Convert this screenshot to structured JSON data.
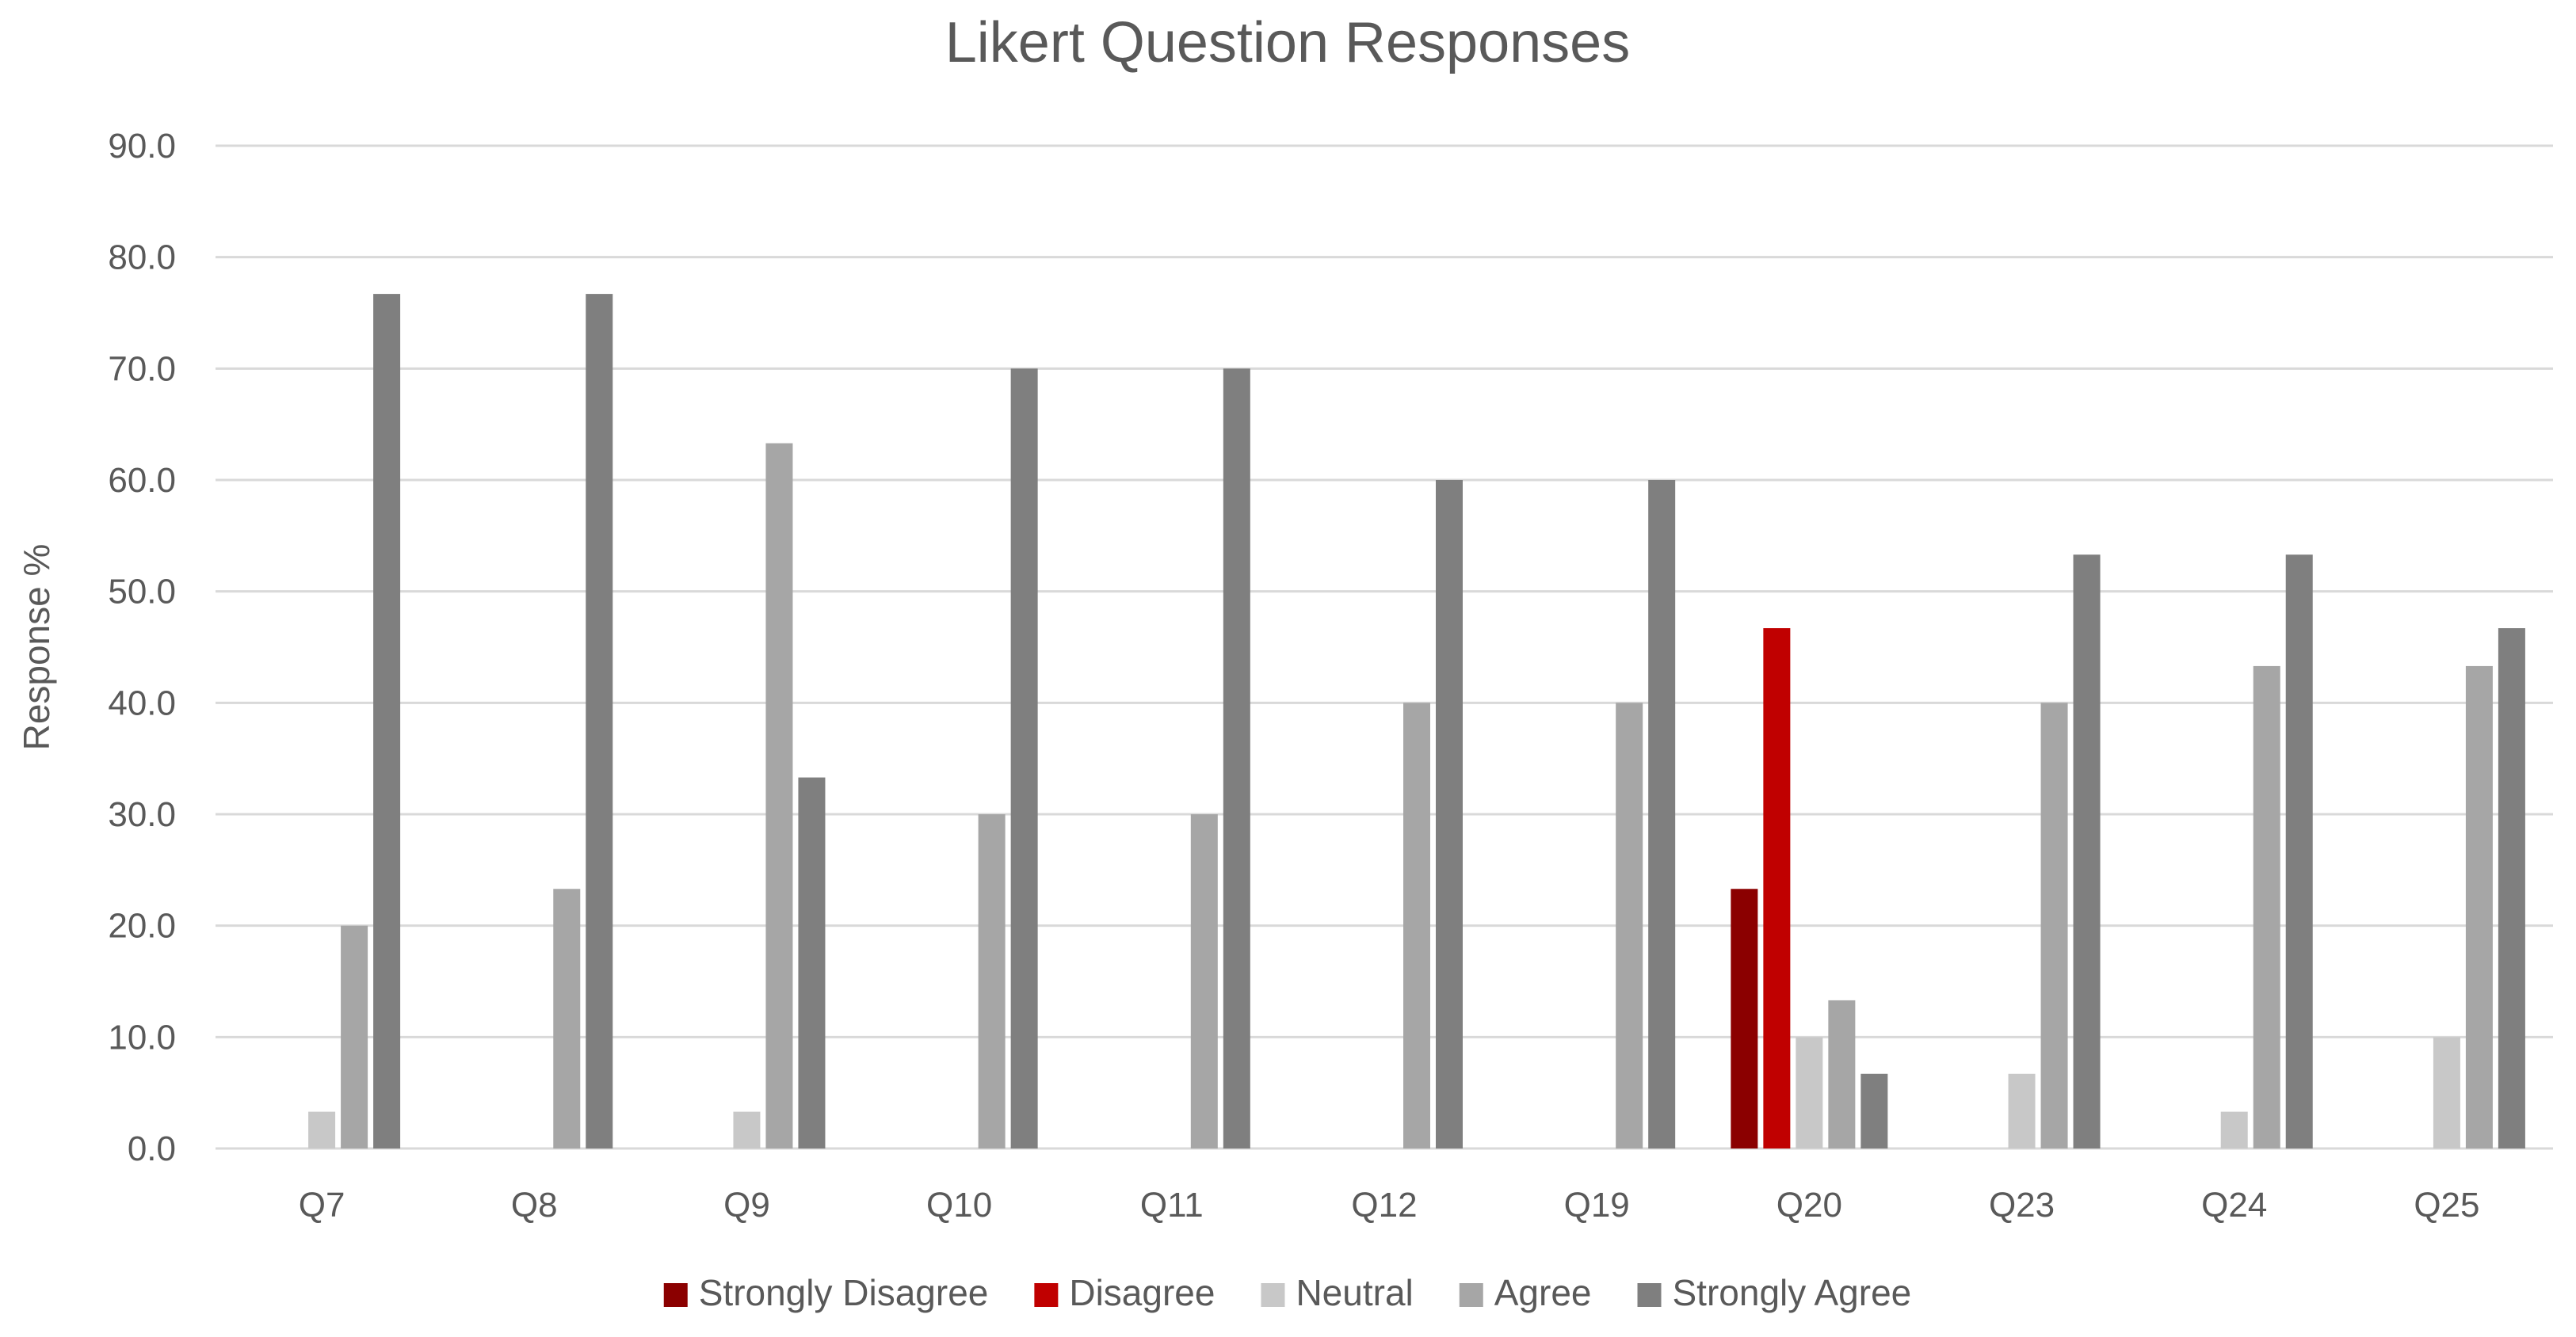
{
  "chart_data": {
    "type": "bar",
    "title": "Likert Question Responses",
    "xlabel": "",
    "ylabel": "Response %",
    "ylim": [
      0,
      90
    ],
    "ytick_step": 10,
    "ytick_labels": [
      "0.0",
      "10.0",
      "20.0",
      "30.0",
      "40.0",
      "50.0",
      "60.0",
      "70.0",
      "80.0",
      "90.0"
    ],
    "grid": true,
    "legend_position": "bottom",
    "categories": [
      "Q7",
      "Q8",
      "Q9",
      "Q10",
      "Q11",
      "Q12",
      "Q19",
      "Q20",
      "Q23",
      "Q24",
      "Q25"
    ],
    "series": [
      {
        "name": "Strongly Disagree",
        "color": "#8b0000",
        "values": [
          0,
          0,
          0,
          0,
          0,
          0,
          0,
          23.3,
          0,
          0,
          0
        ]
      },
      {
        "name": "Disagree",
        "color": "#c00000",
        "values": [
          0,
          0,
          0,
          0,
          0,
          0,
          0,
          46.7,
          0,
          0,
          0
        ]
      },
      {
        "name": "Neutral",
        "color": "#c8c8c8",
        "values": [
          3.3,
          0,
          3.3,
          0,
          0,
          0,
          0,
          10.0,
          6.7,
          3.3,
          10.0
        ]
      },
      {
        "name": "Agree",
        "color": "#a6a6a6",
        "values": [
          20.0,
          23.3,
          63.3,
          30.0,
          30.0,
          40.0,
          40.0,
          13.3,
          40.0,
          43.3,
          43.3
        ]
      },
      {
        "name": "Strongly Agree",
        "color": "#7f7f7f",
        "values": [
          76.7,
          76.7,
          33.3,
          70.0,
          70.0,
          60.0,
          60.0,
          6.7,
          53.3,
          53.3,
          46.7
        ]
      }
    ]
  }
}
